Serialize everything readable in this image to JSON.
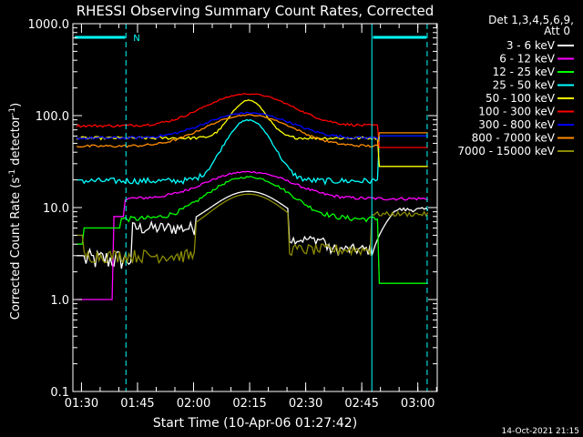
{
  "chart_data": {
    "type": "line",
    "title": "RHESSI Observing Summary Count Rates, Corrected",
    "xlabel": "Start Time (10-Apr-06 01:27:42)",
    "ylabel_main": "Corrected Count Rate (s",
    "ylabel_sup1": "-1",
    "ylabel_mid": " detector",
    "ylabel_sup2": "-1",
    "ylabel_end": ")",
    "yscale": "log",
    "ylim": [
      0.1,
      1000
    ],
    "xlim_minutes": [
      0,
      97.5
    ],
    "x_ticks": [
      {
        "label": "01:30",
        "minute": 2.3
      },
      {
        "label": "01:45",
        "minute": 17.3
      },
      {
        "label": "02:00",
        "minute": 32.3
      },
      {
        "label": "02:15",
        "minute": 47.3
      },
      {
        "label": "02:30",
        "minute": 62.3
      },
      {
        "label": "02:45",
        "minute": 77.3
      },
      {
        "label": "03:00",
        "minute": 92.3
      }
    ],
    "y_ticks": [
      {
        "label": "0.1",
        "value": 0.1
      },
      {
        "label": "1.0",
        "value": 1
      },
      {
        "label": "10.0",
        "value": 10
      },
      {
        "label": "100.0",
        "value": 100
      },
      {
        "label": "1000.0",
        "value": 1000
      }
    ],
    "legend_header": [
      "Det 1,3,4,5,6,9,",
      "Att 0"
    ],
    "series": [
      {
        "name": "3 - 6 keV",
        "color": "#ffffff"
      },
      {
        "name": "6 - 12 keV",
        "color": "#ff00ff"
      },
      {
        "name": "12 - 25 keV",
        "color": "#00ff00"
      },
      {
        "name": "25 - 50 keV",
        "color": "#00ffff"
      },
      {
        "name": "50 - 100 keV",
        "color": "#ffff00"
      },
      {
        "name": "100 - 300 keV",
        "color": "#ff0000"
      },
      {
        "name": "300 - 800 keV",
        "color": "#0000ff"
      },
      {
        "name": "800 - 7000 keV",
        "color": "#ff8c00"
      },
      {
        "name": "7000 - 15000 keV",
        "color": "#8b8b00"
      }
    ],
    "flag_label": "N",
    "vertical_markers": [
      {
        "minute": 0.0,
        "style": "solid"
      },
      {
        "minute": 14.2,
        "style": "dashed"
      },
      {
        "minute": 80.0,
        "style": "solid"
      },
      {
        "minute": 94.8,
        "style": "dashed"
      }
    ]
  },
  "footer": {
    "timestamp": "14-Oct-2021 21:15"
  }
}
